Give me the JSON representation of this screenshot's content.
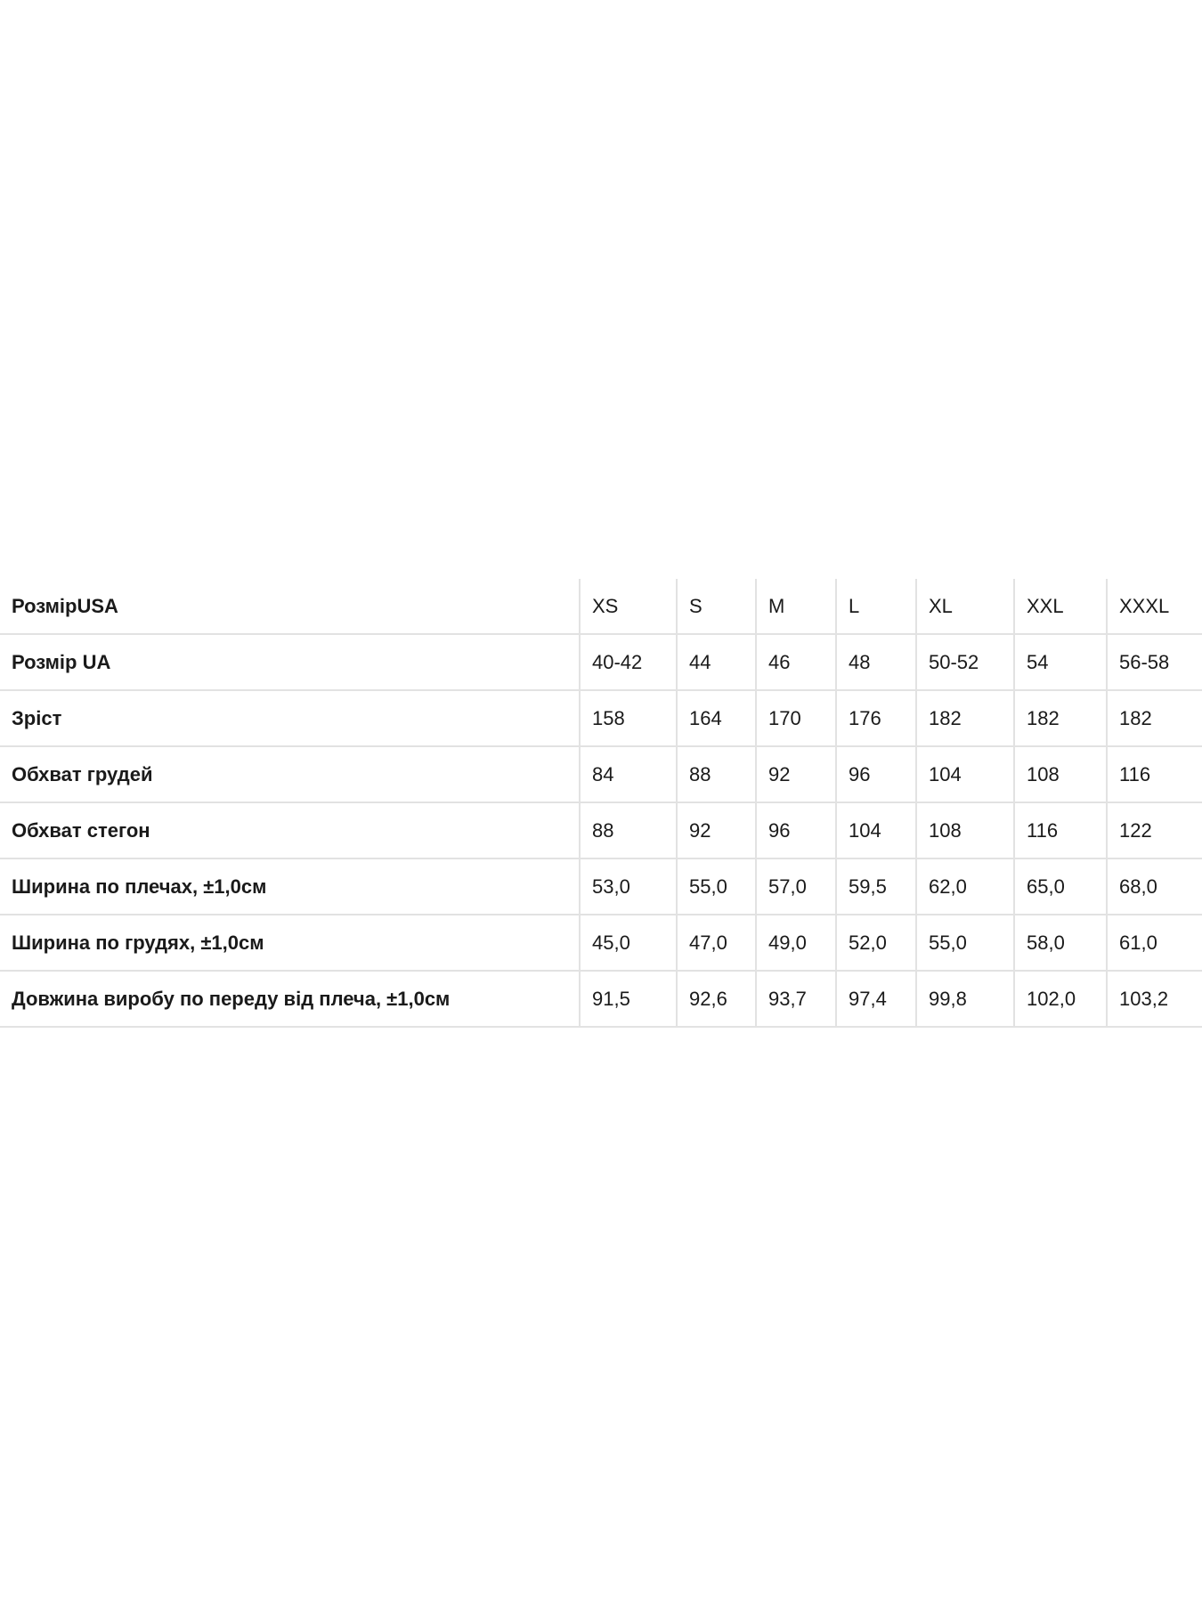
{
  "table": {
    "header": {
      "label": "РозмірUSA",
      "cells": [
        "XS",
        "S",
        "M",
        "L",
        "XL",
        "XXL",
        "XXXL"
      ]
    },
    "rows": [
      {
        "label": "Розмір UA",
        "cells": [
          "40-42",
          "44",
          "46",
          "48",
          "50-52",
          "54",
          "56-58"
        ]
      },
      {
        "label": "Зріст",
        "cells": [
          "158",
          "164",
          "170",
          "176",
          "182",
          "182",
          "182"
        ]
      },
      {
        "label": "Обхват грудей",
        "cells": [
          "84",
          "88",
          "92",
          "96",
          "104",
          "108",
          "116"
        ]
      },
      {
        "label": "Обхват стегон",
        "cells": [
          "88",
          "92",
          "96",
          "104",
          "108",
          "116",
          "122"
        ]
      },
      {
        "label": "Ширина по плечах, ±1,0см",
        "cells": [
          "53,0",
          "55,0",
          "57,0",
          "59,5",
          "62,0",
          "65,0",
          "68,0"
        ]
      },
      {
        "label": "Ширина по грудях, ±1,0см",
        "cells": [
          "45,0",
          "47,0",
          "49,0",
          "52,0",
          "55,0",
          "58,0",
          "61,0"
        ]
      },
      {
        "label": "Довжина виробу по переду від плеча, ±1,0см",
        "cells": [
          "91,5",
          "92,6",
          "93,7",
          "97,4",
          "99,8",
          "102,0",
          "103,2"
        ]
      }
    ]
  }
}
